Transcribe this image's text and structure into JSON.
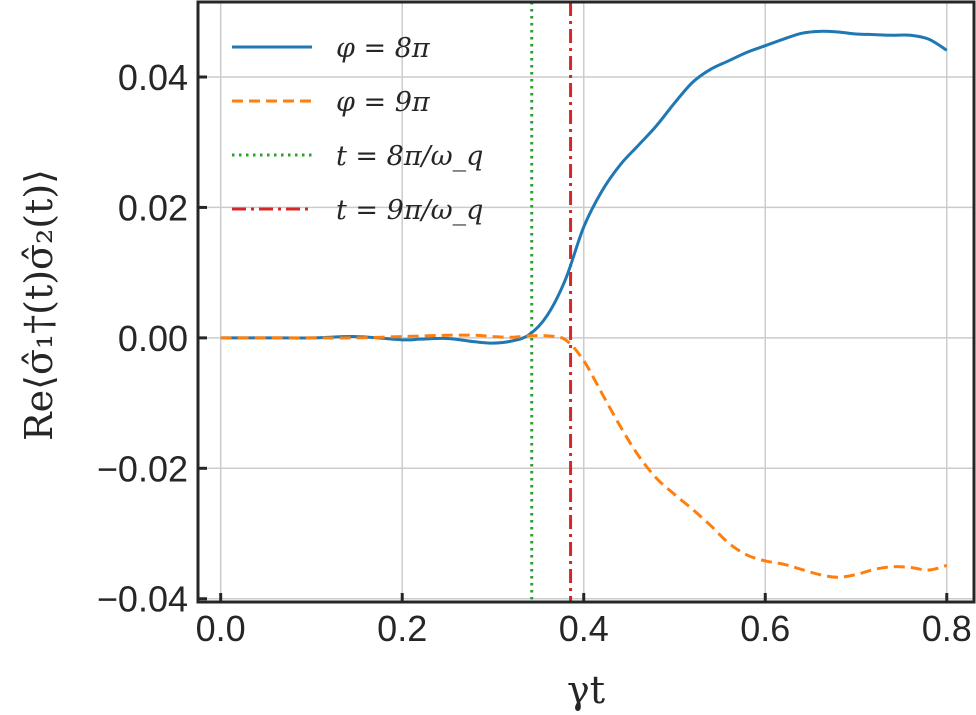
{
  "chart_data": {
    "type": "line",
    "xlabel": "γt",
    "ylabel": "Re⟨σ̂₁†(t)σ̂₂(t)⟩",
    "xlim": [
      -0.025,
      0.83
    ],
    "ylim": [
      -0.0405,
      0.0515
    ],
    "xticks": [
      0.0,
      0.2,
      0.4,
      0.6,
      0.8
    ],
    "yticks": [
      -0.04,
      -0.02,
      0.0,
      0.02,
      0.04
    ],
    "xtick_labels": [
      "0.0",
      "0.2",
      "0.4",
      "0.6",
      "0.8"
    ],
    "ytick_labels": [
      "−0.04",
      "−0.02",
      "0.00",
      "0.02",
      "0.04"
    ],
    "grid": true,
    "legend_position": "top-left",
    "series": [
      {
        "name": "φ = 8π",
        "color": "#1f77b4",
        "style": "solid",
        "x": [
          0.0,
          0.05,
          0.1,
          0.15,
          0.2,
          0.22,
          0.25,
          0.28,
          0.3,
          0.32,
          0.34,
          0.36,
          0.38,
          0.4,
          0.42,
          0.44,
          0.46,
          0.48,
          0.5,
          0.52,
          0.54,
          0.56,
          0.58,
          0.6,
          0.62,
          0.64,
          0.66,
          0.68,
          0.7,
          0.72,
          0.74,
          0.76,
          0.78,
          0.8
        ],
        "y": [
          0.0,
          0.0,
          0.0,
          0.0002,
          -0.0003,
          -0.0002,
          -0.0001,
          -0.0006,
          -0.0008,
          -0.0005,
          0.0005,
          0.0035,
          0.009,
          0.017,
          0.0225,
          0.0265,
          0.0295,
          0.0325,
          0.036,
          0.0392,
          0.0412,
          0.0425,
          0.0438,
          0.0448,
          0.0458,
          0.0467,
          0.047,
          0.0469,
          0.0466,
          0.0465,
          0.0464,
          0.0464,
          0.0458,
          0.0441
        ]
      },
      {
        "name": "φ = 9π",
        "color": "#ff7f0e",
        "style": "dashed",
        "x": [
          0.0,
          0.05,
          0.1,
          0.15,
          0.2,
          0.25,
          0.28,
          0.3,
          0.32,
          0.34,
          0.36,
          0.38,
          0.4,
          0.42,
          0.44,
          0.46,
          0.48,
          0.5,
          0.52,
          0.54,
          0.56,
          0.58,
          0.6,
          0.62,
          0.64,
          0.66,
          0.68,
          0.7,
          0.72,
          0.74,
          0.76,
          0.78,
          0.8
        ],
        "y": [
          0.0,
          0.0,
          0.0,
          0.0,
          0.0002,
          0.0004,
          0.0004,
          0.0002,
          0.0001,
          0.0003,
          0.0003,
          -0.0003,
          -0.0035,
          -0.0085,
          -0.0135,
          -0.018,
          -0.0215,
          -0.024,
          -0.0263,
          -0.0288,
          -0.0315,
          -0.0333,
          -0.0342,
          -0.0347,
          -0.0355,
          -0.0363,
          -0.0367,
          -0.0363,
          -0.0355,
          -0.0351,
          -0.0352,
          -0.0356,
          -0.0349
        ]
      }
    ],
    "vlines": [
      {
        "name": "t = 8π/ω_q",
        "x": 0.3427,
        "color": "#2ca02c",
        "style": "dotted"
      },
      {
        "name": "t = 9π/ω_q",
        "x": 0.3855,
        "color": "#d62728",
        "style": "dashdot"
      }
    ]
  }
}
